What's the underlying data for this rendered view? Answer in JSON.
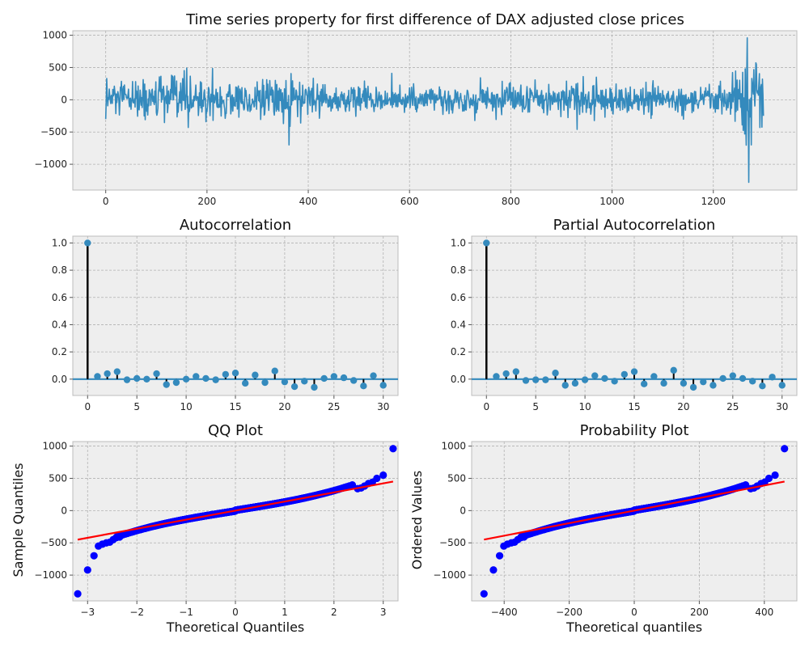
{
  "figure": {
    "background": "#ffffff",
    "panel_color": "#eeeeee",
    "grid_color": "#b2b2b2"
  },
  "chart_data": [
    {
      "id": "ts",
      "type": "line",
      "title": "Time series property for first difference of DAX adjusted close prices",
      "xlabel": "",
      "ylabel": "",
      "xlim": [
        -65,
        1365
      ],
      "ylim": [
        -1400,
        1070
      ],
      "xticks": [
        0,
        200,
        400,
        600,
        800,
        1000,
        1200
      ],
      "yticks": [
        -1000,
        -500,
        0,
        500,
        1000
      ],
      "ytick_labels": [
        "−1000",
        "−500",
        "0",
        "500",
        "1000"
      ],
      "color": "#348abd",
      "grid": true,
      "n_points": 1300,
      "noise_scale": [
        [
          0,
          140
        ],
        [
          100,
          160
        ],
        [
          150,
          190
        ],
        [
          200,
          170
        ],
        [
          250,
          160
        ],
        [
          300,
          140
        ],
        [
          350,
          170
        ],
        [
          400,
          130
        ],
        [
          500,
          110
        ],
        [
          600,
          80
        ],
        [
          650,
          90
        ],
        [
          700,
          100
        ],
        [
          750,
          120
        ],
        [
          800,
          130
        ],
        [
          850,
          120
        ],
        [
          900,
          130
        ],
        [
          950,
          160
        ],
        [
          1000,
          140
        ],
        [
          1050,
          110
        ],
        [
          1100,
          100
        ],
        [
          1150,
          100
        ],
        [
          1200,
          110
        ],
        [
          1230,
          140
        ],
        [
          1250,
          330
        ],
        [
          1270,
          300
        ],
        [
          1299,
          230
        ]
      ],
      "extremes": [
        [
          0,
          -300
        ],
        [
          2,
          330
        ],
        [
          160,
          490
        ],
        [
          362,
          -700
        ],
        [
          565,
          410
        ],
        [
          1262,
          -530
        ],
        [
          1267,
          960
        ],
        [
          1270,
          -1280
        ],
        [
          1275,
          -700
        ],
        [
          1285,
          550
        ],
        [
          1292,
          -430
        ],
        [
          1297,
          320
        ],
        [
          1299,
          -250
        ]
      ]
    },
    {
      "id": "acf",
      "type": "stem",
      "title": "Autocorrelation",
      "xlabel": "",
      "ylabel": "",
      "xlim": [
        -1.5,
        31.5
      ],
      "ylim": [
        -0.12,
        1.05
      ],
      "xticks": [
        0,
        5,
        10,
        15,
        20,
        25,
        30
      ],
      "yticks": [
        0.0,
        0.2,
        0.4,
        0.6,
        0.8,
        1.0
      ],
      "ytick_labels": [
        "0.0",
        "0.2",
        "0.4",
        "0.6",
        "0.8",
        "1.0"
      ],
      "color": "#348abd",
      "grid": true,
      "x": [
        0,
        1,
        2,
        3,
        4,
        5,
        6,
        7,
        8,
        9,
        10,
        11,
        12,
        13,
        14,
        15,
        16,
        17,
        18,
        19,
        20,
        21,
        22,
        23,
        24,
        25,
        26,
        27,
        28,
        29,
        30
      ],
      "values": [
        1.0,
        0.02,
        0.04,
        0.055,
        -0.005,
        0.005,
        0.0,
        0.04,
        -0.04,
        -0.025,
        0.0,
        0.02,
        0.005,
        -0.005,
        0.035,
        0.045,
        -0.03,
        0.03,
        -0.025,
        0.06,
        -0.02,
        -0.055,
        -0.015,
        -0.06,
        0.005,
        0.02,
        0.01,
        -0.01,
        -0.05,
        0.025,
        -0.045
      ]
    },
    {
      "id": "pacf",
      "type": "stem",
      "title": "Partial Autocorrelation",
      "xlabel": "",
      "ylabel": "",
      "xlim": [
        -1.5,
        31.5
      ],
      "ylim": [
        -0.12,
        1.05
      ],
      "xticks": [
        0,
        5,
        10,
        15,
        20,
        25,
        30
      ],
      "yticks": [
        0.0,
        0.2,
        0.4,
        0.6,
        0.8,
        1.0
      ],
      "ytick_labels": [
        "0.0",
        "0.2",
        "0.4",
        "0.6",
        "0.8",
        "1.0"
      ],
      "color": "#348abd",
      "grid": true,
      "x": [
        0,
        1,
        2,
        3,
        4,
        5,
        6,
        7,
        8,
        9,
        10,
        11,
        12,
        13,
        14,
        15,
        16,
        17,
        18,
        19,
        20,
        21,
        22,
        23,
        24,
        25,
        26,
        27,
        28,
        29,
        30
      ],
      "values": [
        1.0,
        0.02,
        0.04,
        0.055,
        -0.01,
        -0.005,
        -0.005,
        0.045,
        -0.045,
        -0.03,
        -0.005,
        0.025,
        0.005,
        -0.015,
        0.035,
        0.055,
        -0.035,
        0.02,
        -0.03,
        0.065,
        -0.03,
        -0.06,
        -0.02,
        -0.045,
        0.005,
        0.025,
        0.005,
        -0.015,
        -0.05,
        0.015,
        -0.045
      ]
    },
    {
      "id": "qq",
      "type": "scatter",
      "title": "QQ Plot",
      "xlabel": "Theoretical Quantiles",
      "ylabel": "Sample Quantiles",
      "xlim": [
        -3.3,
        3.3
      ],
      "ylim": [
        -1400,
        1070
      ],
      "xticks": [
        -3,
        -2,
        -1,
        0,
        1,
        2,
        3
      ],
      "xtick_labels": [
        "−3",
        "−2",
        "−1",
        "0",
        "1",
        "2",
        "3"
      ],
      "yticks": [
        -1000,
        -500,
        0,
        500,
        1000
      ],
      "ytick_labels": [
        "−1000",
        "−500",
        "0",
        "500",
        "1000"
      ],
      "point_color": "#0000ff",
      "line_color": "#ff0000",
      "line": {
        "x": [
          -3.2,
          3.2
        ],
        "y": [
          -450,
          450
        ]
      },
      "n_points": 1300,
      "theoretical_range": [
        -3.2,
        3.2
      ],
      "tail_points": [
        [
          -3.2,
          -1290
        ],
        [
          -3.0,
          -920
        ],
        [
          -2.87,
          -700
        ],
        [
          -2.78,
          -550
        ],
        [
          -2.7,
          -520
        ],
        [
          -2.62,
          -500
        ],
        [
          -2.55,
          -490
        ],
        [
          -2.48,
          -450
        ],
        [
          -2.42,
          -420
        ],
        [
          -2.35,
          -410
        ],
        [
          2.48,
          340
        ],
        [
          2.55,
          350
        ],
        [
          2.62,
          380
        ],
        [
          2.7,
          420
        ],
        [
          2.78,
          440
        ],
        [
          2.87,
          500
        ],
        [
          3.0,
          550
        ],
        [
          3.2,
          960
        ]
      ]
    },
    {
      "id": "prob",
      "type": "scatter",
      "title": "Probability Plot",
      "xlabel": "Theoretical quantiles",
      "ylabel": "Ordered Values",
      "xlim": [
        -500,
        500
      ],
      "ylim": [
        -1400,
        1070
      ],
      "xticks": [
        -400,
        -200,
        0,
        200,
        400
      ],
      "xtick_labels": [
        "−400",
        "−200",
        "0",
        "200",
        "400"
      ],
      "yticks": [
        -1000,
        -500,
        0,
        500,
        1000
      ],
      "ytick_labels": [
        "−1000",
        "−500",
        "0",
        "500",
        "1000"
      ],
      "point_color": "#0000ff",
      "line_color": "#ff0000",
      "line": {
        "x": [
          -462,
          462
        ],
        "y": [
          -450,
          450
        ]
      },
      "n_points": 1300,
      "theoretical_range": [
        -462,
        462
      ],
      "tail_points": [
        [
          -462,
          -1290
        ],
        [
          -433,
          -920
        ],
        [
          -414,
          -700
        ],
        [
          -401,
          -550
        ],
        [
          -390,
          -520
        ],
        [
          -378,
          -500
        ],
        [
          -368,
          -490
        ],
        [
          -358,
          -450
        ],
        [
          -349,
          -420
        ],
        [
          -339,
          -410
        ],
        [
          358,
          340
        ],
        [
          368,
          350
        ],
        [
          378,
          380
        ],
        [
          390,
          420
        ],
        [
          401,
          440
        ],
        [
          414,
          500
        ],
        [
          433,
          550
        ],
        [
          462,
          960
        ]
      ]
    }
  ]
}
